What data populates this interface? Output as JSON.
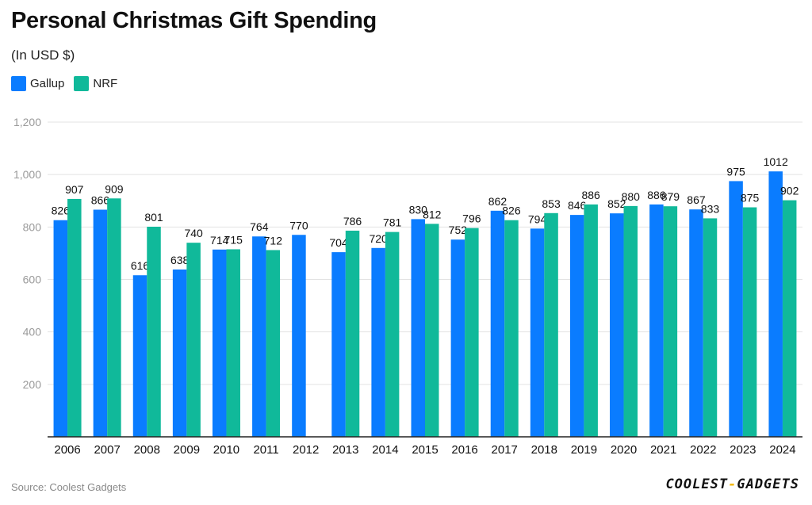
{
  "header": {
    "title": "Personal Christmas Gift Spending",
    "subtitle": "(In USD $)"
  },
  "colors": {
    "gallup": "#0a7cff",
    "nrf": "#10b99a",
    "grid": "#e3e3e3",
    "axis": "#222222",
    "tick": "#9a9a9a"
  },
  "footer": {
    "source": "Source: Coolest Gadgets",
    "brand_left": "COOLEST",
    "brand_dash": "-",
    "brand_right": "GADGETS"
  },
  "chart_data": {
    "type": "bar",
    "title": "Personal Christmas Gift Spending",
    "subtitle": "(In USD $)",
    "xlabel": "",
    "ylabel": "",
    "ylim": [
      0,
      1200
    ],
    "yticks": [
      200,
      400,
      600,
      800,
      1000,
      1200
    ],
    "ytick_labels": [
      "200",
      "400",
      "600",
      "800",
      "1,000",
      "1,200"
    ],
    "grid": true,
    "legend_position": "top-left",
    "categories": [
      "2006",
      "2007",
      "2008",
      "2009",
      "2010",
      "2011",
      "2012",
      "2013",
      "2014",
      "2015",
      "2016",
      "2017",
      "2018",
      "2019",
      "2020",
      "2021",
      "2022",
      "2023",
      "2024"
    ],
    "series": [
      {
        "name": "Gallup",
        "color": "#0a7cff",
        "values": [
          826,
          866,
          616,
          638,
          714,
          764,
          770,
          704,
          720,
          830,
          752,
          862,
          794,
          846,
          852,
          886,
          867,
          975,
          1012
        ]
      },
      {
        "name": "NRF",
        "color": "#10b99a",
        "values": [
          907,
          909,
          801,
          740,
          715,
          712,
          null,
          786,
          781,
          812,
          796,
          826,
          853,
          886,
          880,
          879,
          833,
          875,
          902
        ]
      }
    ]
  }
}
